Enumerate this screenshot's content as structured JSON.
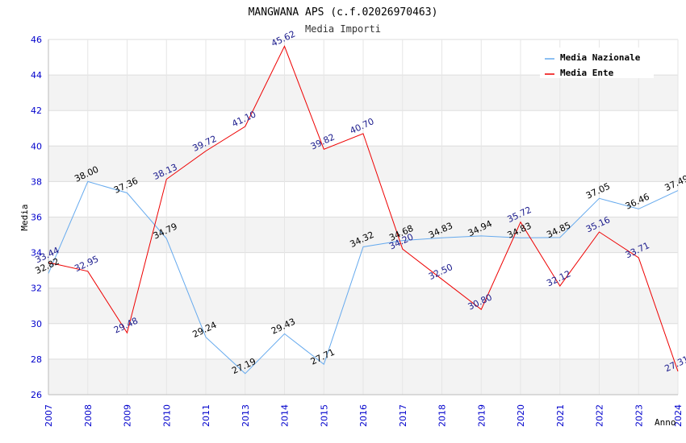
{
  "chart_data": {
    "type": "line",
    "title": "MANGWANA APS (c.f.02026970463)",
    "subtitle": "Media Importi",
    "xlabel": "Anno",
    "ylabel": "Media",
    "categories": [
      "2007",
      "2008",
      "2009",
      "2010",
      "2011",
      "2013",
      "2014",
      "2015",
      "2016",
      "2017",
      "2018",
      "2019",
      "2020",
      "2021",
      "2022",
      "2023",
      "2024"
    ],
    "ylim": [
      26,
      46
    ],
    "yticks": [
      "26",
      "28",
      "30",
      "32",
      "34",
      "36",
      "38",
      "40",
      "42",
      "44",
      "46"
    ],
    "grid": true,
    "legend_position": "top-right",
    "series": [
      {
        "name": "Media Nazionale",
        "color": "#66aaee",
        "values": [
          32.82,
          38.0,
          37.36,
          34.79,
          29.24,
          27.19,
          29.43,
          27.71,
          34.32,
          34.68,
          34.83,
          34.94,
          34.83,
          34.85,
          37.05,
          36.46,
          37.49
        ],
        "labels": [
          "32.82",
          "38.00",
          "37.36",
          "34.79",
          "29.24",
          "27.19",
          "29.43",
          "27.71",
          "34.32",
          "34.68",
          "34.83",
          "34.94",
          "34.83",
          "34.85",
          "37.05",
          "36.46",
          "37.49"
        ]
      },
      {
        "name": "Media Ente",
        "color": "#ee0000",
        "values": [
          33.44,
          32.95,
          29.48,
          38.13,
          39.72,
          41.1,
          45.62,
          39.82,
          40.7,
          34.2,
          32.5,
          30.8,
          35.72,
          32.12,
          35.16,
          33.71,
          27.31
        ],
        "labels": [
          "33.44",
          "32.95",
          "29.48",
          "38.13",
          "39.72",
          "41.10",
          "45.62",
          "39.82",
          "40.70",
          "34.20",
          "32.50",
          "30.80",
          "35.72",
          "32.12",
          "35.16",
          "33.71",
          "27.31"
        ]
      }
    ]
  }
}
